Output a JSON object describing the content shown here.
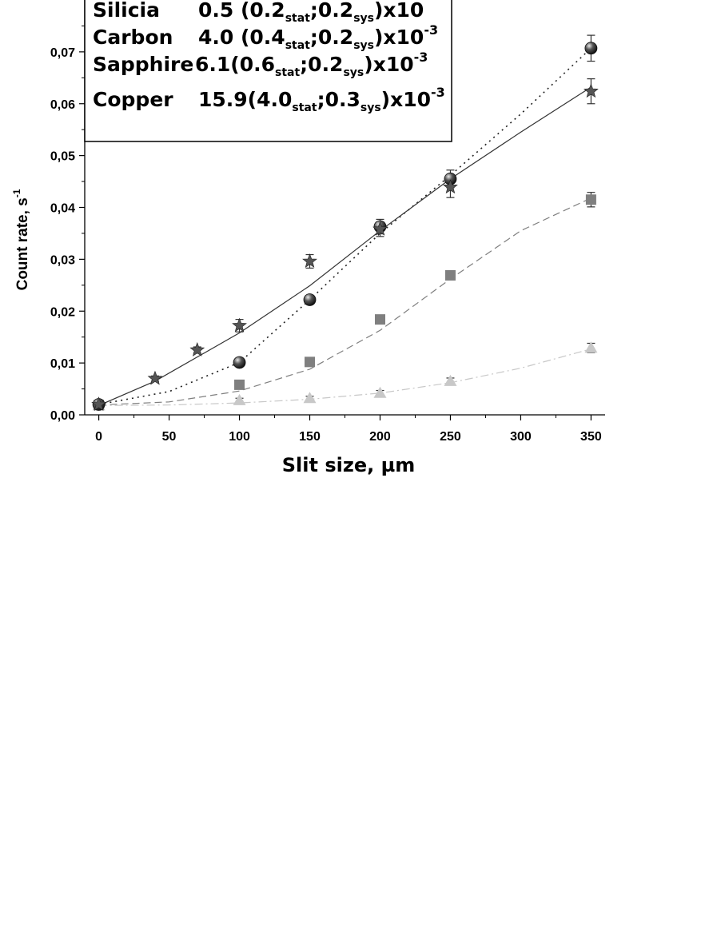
{
  "chart_data": {
    "type": "scatter",
    "xlabel": "Slit size, µm",
    "ylabel": "Count rate, s",
    "ylabel_sup": "-1",
    "xlim": [
      -10,
      360
    ],
    "ylim": [
      0,
      0.08
    ],
    "x_ticks": [
      {
        "value": 0,
        "label": "0"
      },
      {
        "value": 50,
        "label": "50"
      },
      {
        "value": 100,
        "label": "100"
      },
      {
        "value": 150,
        "label": "150"
      },
      {
        "value": 200,
        "label": "200"
      },
      {
        "value": 250,
        "label": "250"
      },
      {
        "value": 300,
        "label": "300"
      },
      {
        "value": 350,
        "label": "350"
      }
    ],
    "y_ticks": [
      {
        "value": 0.0,
        "label": "0,00"
      },
      {
        "value": 0.01,
        "label": "0,01"
      },
      {
        "value": 0.02,
        "label": "0,02"
      },
      {
        "value": 0.03,
        "label": "0,03"
      },
      {
        "value": 0.04,
        "label": "0,04"
      },
      {
        "value": 0.05,
        "label": "0,05"
      },
      {
        "value": 0.06,
        "label": "0,06"
      },
      {
        "value": 0.07,
        "label": "0,07"
      }
    ],
    "grid": false,
    "legend_position": "top-left",
    "series": [
      {
        "name": "Silicia",
        "legend_value": "0.5 (0.2",
        "legend_stat_sub": "stat",
        "legend_mid": ";0.2",
        "legend_sys_sub": "sys",
        "legend_tail": ")x10",
        "legend_exp": "",
        "marker": "triangle",
        "color": "#c8c8c8",
        "line_style": "dashdot",
        "points": [
          {
            "x": 0,
            "y": 0.0018,
            "err": 0.0003
          },
          {
            "x": 100,
            "y": 0.0028,
            "err": 0.0004
          },
          {
            "x": 150,
            "y": 0.0032,
            "err": 0.0004
          },
          {
            "x": 200,
            "y": 0.0042,
            "err": 0.0005
          },
          {
            "x": 250,
            "y": 0.0065,
            "err": 0.0006
          },
          {
            "x": 350,
            "y": 0.0129,
            "err": 0.0009
          }
        ],
        "fit": [
          [
            0,
            0.0018
          ],
          [
            50,
            0.0019
          ],
          [
            100,
            0.0023
          ],
          [
            150,
            0.003
          ],
          [
            200,
            0.0042
          ],
          [
            250,
            0.0062
          ],
          [
            300,
            0.009
          ],
          [
            350,
            0.0127
          ]
        ]
      },
      {
        "name": "Carbon",
        "legend_value": "4.0 (0.4",
        "legend_stat_sub": "stat",
        "legend_mid": ";0.2",
        "legend_sys_sub": "sys",
        "legend_tail": ")x10",
        "legend_exp": "-3",
        "marker": "square",
        "color": "#7f7f7f",
        "line_style": "dashed",
        "points": [
          {
            "x": 0,
            "y": 0.0019,
            "err": 0.0003
          },
          {
            "x": 100,
            "y": 0.0058,
            "err": 0.0005
          },
          {
            "x": 150,
            "y": 0.0102,
            "err": 0.0006
          },
          {
            "x": 200,
            "y": 0.0184,
            "err": 0.0007
          },
          {
            "x": 250,
            "y": 0.0269,
            "err": 0.0008
          },
          {
            "x": 350,
            "y": 0.0415,
            "err": 0.0014
          }
        ],
        "fit": [
          [
            0,
            0.0019
          ],
          [
            50,
            0.0025
          ],
          [
            100,
            0.0046
          ],
          [
            150,
            0.0088
          ],
          [
            200,
            0.0163
          ],
          [
            250,
            0.0262
          ],
          [
            300,
            0.0355
          ],
          [
            350,
            0.0418
          ]
        ]
      },
      {
        "name": "Sapphire",
        "legend_value": "6.1(0.6",
        "legend_stat_sub": "stat",
        "legend_mid": ";0.2",
        "legend_sys_sub": "sys",
        "legend_tail": ")x10",
        "legend_exp": "-3",
        "marker": "sphere",
        "color": "#3a3a3a",
        "line_style": "dotted",
        "points": [
          {
            "x": 0,
            "y": 0.002,
            "err": 0.0003
          },
          {
            "x": 100,
            "y": 0.0101,
            "err": 0.0006
          },
          {
            "x": 150,
            "y": 0.0222,
            "err": 0.0007
          },
          {
            "x": 200,
            "y": 0.0363,
            "err": 0.0014
          },
          {
            "x": 250,
            "y": 0.0455,
            "err": 0.0017
          },
          {
            "x": 350,
            "y": 0.0707,
            "err": 0.0025
          }
        ],
        "fit": [
          [
            0,
            0.002
          ],
          [
            50,
            0.0045
          ],
          [
            100,
            0.0101
          ],
          [
            150,
            0.0222
          ],
          [
            200,
            0.035
          ],
          [
            250,
            0.0462
          ],
          [
            300,
            0.058
          ],
          [
            350,
            0.0707
          ]
        ]
      },
      {
        "name": "Copper",
        "legend_value": "15.9(4.0",
        "legend_stat_sub": "stat",
        "legend_mid": ";0.3",
        "legend_sys_sub": "sys",
        "legend_tail": ")x10",
        "legend_exp": "-3",
        "marker": "star",
        "color": "#555555",
        "line_style": "solid",
        "points": [
          {
            "x": 0,
            "y": 0.002,
            "err": 0.0003
          },
          {
            "x": 40,
            "y": 0.007,
            "err": 0.0005
          },
          {
            "x": 70,
            "y": 0.0125,
            "err": 0.0006
          },
          {
            "x": 100,
            "y": 0.0172,
            "err": 0.0012
          },
          {
            "x": 150,
            "y": 0.0296,
            "err": 0.0013
          },
          {
            "x": 200,
            "y": 0.0358,
            "err": 0.0014
          },
          {
            "x": 250,
            "y": 0.0439,
            "err": 0.002
          },
          {
            "x": 350,
            "y": 0.0624,
            "err": 0.0024
          }
        ],
        "fit": [
          [
            0,
            0.0018
          ],
          [
            40,
            0.0065
          ],
          [
            100,
            0.0158
          ],
          [
            150,
            0.0249
          ],
          [
            200,
            0.0355
          ],
          [
            250,
            0.0455
          ],
          [
            300,
            0.0545
          ],
          [
            350,
            0.0632
          ]
        ]
      }
    ]
  }
}
